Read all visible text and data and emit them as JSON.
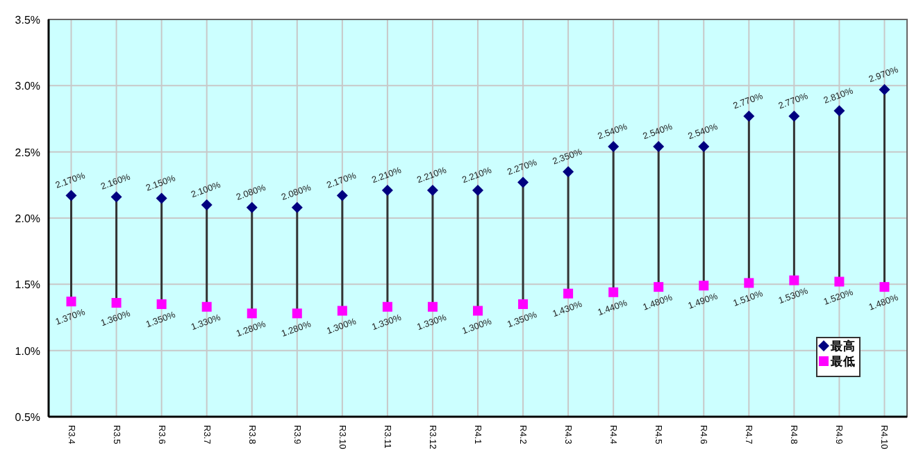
{
  "chart_data": {
    "type": "scatter",
    "categories": [
      "R3.4",
      "R3.5",
      "R3.6",
      "R3.7",
      "R3.8",
      "R3.9",
      "R3.10",
      "R3.11",
      "R3.12",
      "R4.1",
      "R4.2",
      "R4.3",
      "R4.4",
      "R4.5",
      "R4.6",
      "R4.7",
      "R4.8",
      "R4.9",
      "R4.10"
    ],
    "series": [
      {
        "type": "bar",
        "color": "#333333",
        "base": [
          1.37,
          1.36,
          1.35,
          1.33,
          1.28,
          1.28,
          1.3,
          1.33,
          1.33,
          1.3,
          1.35,
          1.43,
          1.44,
          1.48,
          1.49,
          1.51,
          1.53,
          1.52,
          1.48
        ],
        "values": [
          0.8,
          0.8,
          0.8,
          0.77,
          0.8,
          0.8,
          0.87,
          0.88,
          0.88,
          0.91,
          0.92,
          0.92,
          1.1,
          1.06,
          1.05,
          1.26,
          1.24,
          1.29,
          1.49
        ]
      },
      {
        "name": "最高",
        "color": "#000080",
        "marker": "diamond",
        "values": [
          2.17,
          2.16,
          2.15,
          2.1,
          2.08,
          2.08,
          2.17,
          2.21,
          2.21,
          2.21,
          2.27,
          2.35,
          2.54,
          2.54,
          2.54,
          2.77,
          2.77,
          2.81,
          2.97
        ],
        "value_labels": [
          "2.170%",
          "2.160%",
          "2.150%",
          "2.100%",
          "2.080%",
          "2.080%",
          "2.170%",
          "2.210%",
          "2.210%",
          "2.210%",
          "2.270%",
          "2.350%",
          "2.540%",
          "2.540%",
          "2.540%",
          "2.770%",
          "2.770%",
          "2.810%",
          "2.970%"
        ]
      },
      {
        "name": "最低",
        "color": "#ff00ff",
        "marker": "square",
        "values": [
          1.37,
          1.36,
          1.35,
          1.33,
          1.28,
          1.28,
          1.3,
          1.33,
          1.33,
          1.3,
          1.35,
          1.43,
          1.44,
          1.48,
          1.49,
          1.51,
          1.53,
          1.52,
          1.48
        ],
        "value_labels": [
          "1.370%",
          "1.360%",
          "1.350%",
          "1.330%",
          "1.280%",
          "1.280%",
          "1.300%",
          "1.330%",
          "1.330%",
          "1.300%",
          "1.350%",
          "1.430%",
          "1.440%",
          "1.480%",
          "1.490%",
          "1.510%",
          "1.530%",
          "1.520%",
          "1.480%"
        ]
      }
    ],
    "ylim": [
      0.5,
      3.5
    ],
    "yticks": [
      {
        "value": 0.5,
        "label": "0.5%"
      },
      {
        "value": 1.0,
        "label": "1.0%"
      },
      {
        "value": 1.5,
        "label": "1.5%"
      },
      {
        "value": 2.0,
        "label": "2.0%"
      },
      {
        "value": 2.5,
        "label": "2.5%"
      },
      {
        "value": 3.0,
        "label": "3.0%"
      },
      {
        "value": 3.5,
        "label": "3.5%"
      }
    ],
    "grid": true,
    "legend": "bottom right"
  }
}
